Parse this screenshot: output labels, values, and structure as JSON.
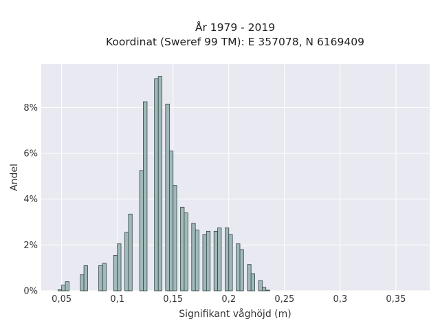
{
  "chart_data": {
    "type": "bar",
    "title_line1": "År 1979 - 2019",
    "title_line2": "Koordinat (Sweref 99 TM): E 357078, N 6169409",
    "xlabel": "Signifikant våghöjd (m)",
    "ylabel": "Andel",
    "x_ticks": [
      {
        "value": 0.05,
        "label": "0,05"
      },
      {
        "value": 0.1,
        "label": "0,1"
      },
      {
        "value": 0.15,
        "label": "0,15"
      },
      {
        "value": 0.2,
        "label": "0,2"
      },
      {
        "value": 0.25,
        "label": "0,25"
      },
      {
        "value": 0.3,
        "label": "0,3"
      },
      {
        "value": 0.35,
        "label": "0,35"
      }
    ],
    "y_ticks": [
      {
        "value": 0,
        "label": "0%"
      },
      {
        "value": 2,
        "label": "2%"
      },
      {
        "value": 4,
        "label": "4%"
      },
      {
        "value": 6,
        "label": "6%"
      },
      {
        "value": 8,
        "label": "8%"
      }
    ],
    "xlim": [
      0.0317,
      0.3803
    ],
    "ylim": [
      0,
      9.9
    ],
    "grid": true,
    "background_color": "#e9e9f2",
    "bar_color": "#a1b9b9",
    "bar_edge_color": "#2f4343",
    "bars": [
      {
        "x0": 0.0467,
        "x1": 0.05,
        "value": 0.05
      },
      {
        "x0": 0.05,
        "x1": 0.0533,
        "value": 0.25
      },
      {
        "x0": 0.0533,
        "x1": 0.0567,
        "value": 0.4
      },
      {
        "x0": 0.0667,
        "x1": 0.07,
        "value": 0.7
      },
      {
        "x0": 0.07,
        "x1": 0.0733,
        "value": 1.1
      },
      {
        "x0": 0.0767,
        "x1": 0.08,
        "value": 0.0
      },
      {
        "x0": 0.0833,
        "x1": 0.0867,
        "value": 1.1
      },
      {
        "x0": 0.0867,
        "x1": 0.09,
        "value": 1.2
      },
      {
        "x0": 0.0967,
        "x1": 0.1,
        "value": 1.55
      },
      {
        "x0": 0.1,
        "x1": 0.1033,
        "value": 2.05
      },
      {
        "x0": 0.1067,
        "x1": 0.11,
        "value": 2.55
      },
      {
        "x0": 0.11,
        "x1": 0.1133,
        "value": 3.35
      },
      {
        "x0": 0.12,
        "x1": 0.1233,
        "value": 5.25
      },
      {
        "x0": 0.1233,
        "x1": 0.1267,
        "value": 8.25
      },
      {
        "x0": 0.1333,
        "x1": 0.1367,
        "value": 9.25
      },
      {
        "x0": 0.1367,
        "x1": 0.14,
        "value": 9.35
      },
      {
        "x0": 0.1433,
        "x1": 0.1467,
        "value": 8.15
      },
      {
        "x0": 0.1467,
        "x1": 0.15,
        "value": 6.1
      },
      {
        "x0": 0.15,
        "x1": 0.1533,
        "value": 4.6
      },
      {
        "x0": 0.1567,
        "x1": 0.16,
        "value": 3.65
      },
      {
        "x0": 0.16,
        "x1": 0.1633,
        "value": 3.4
      },
      {
        "x0": 0.1667,
        "x1": 0.17,
        "value": 2.95
      },
      {
        "x0": 0.17,
        "x1": 0.1733,
        "value": 2.65
      },
      {
        "x0": 0.1767,
        "x1": 0.18,
        "value": 2.45
      },
      {
        "x0": 0.18,
        "x1": 0.1833,
        "value": 2.6
      },
      {
        "x0": 0.1867,
        "x1": 0.19,
        "value": 2.6
      },
      {
        "x0": 0.19,
        "x1": 0.1933,
        "value": 2.75
      },
      {
        "x0": 0.1967,
        "x1": 0.2,
        "value": 2.75
      },
      {
        "x0": 0.2,
        "x1": 0.2033,
        "value": 2.45
      },
      {
        "x0": 0.2067,
        "x1": 0.21,
        "value": 2.05
      },
      {
        "x0": 0.21,
        "x1": 0.2133,
        "value": 1.8
      },
      {
        "x0": 0.2167,
        "x1": 0.22,
        "value": 1.15
      },
      {
        "x0": 0.22,
        "x1": 0.2233,
        "value": 0.75
      },
      {
        "x0": 0.2267,
        "x1": 0.23,
        "value": 0.45
      },
      {
        "x0": 0.23,
        "x1": 0.2333,
        "value": 0.15
      },
      {
        "x0": 0.2333,
        "x1": 0.2367,
        "value": 0.03
      }
    ]
  }
}
